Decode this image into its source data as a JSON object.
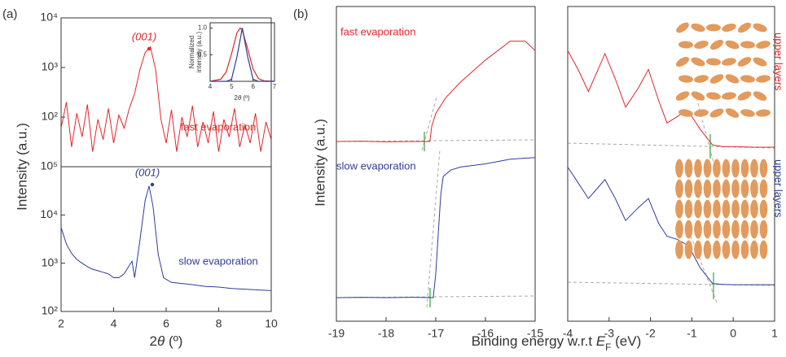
{
  "panel_labels": [
    "(a)",
    "(b)"
  ],
  "chart_data": [
    {
      "type": "line",
      "log_y": true,
      "xlim": [
        2,
        10
      ],
      "ylim": [
        10,
        10000
      ],
      "yticks": [
        {
          "value": 10000,
          "label": "10⁴"
        },
        {
          "value": 1000,
          "label": "10³"
        },
        {
          "value": 100,
          "label": "10²"
        }
      ],
      "annotations": [
        "(001)",
        "fast evaporation"
      ],
      "series": [
        {
          "color": "#e4252a",
          "x": [
            2,
            2.2,
            2.4,
            2.6,
            2.8,
            3,
            3.2,
            3.4,
            3.6,
            3.8,
            4,
            4.2,
            4.4,
            4.6,
            4.8,
            5,
            5.2,
            5.4,
            5.6,
            5.8,
            6,
            6.2,
            6.4,
            6.6,
            6.8,
            7,
            7.2,
            7.4,
            7.6,
            7.8,
            8,
            8.2,
            8.4,
            8.6,
            8.8,
            9,
            9.2,
            9.4,
            9.6,
            9.8,
            10
          ],
          "values": [
            60,
            200,
            25,
            120,
            40,
            180,
            20,
            90,
            35,
            150,
            30,
            110,
            60,
            150,
            300,
            900,
            2000,
            2600,
            900,
            90,
            30,
            140,
            20,
            100,
            40,
            170,
            25,
            80,
            30,
            130,
            20,
            90,
            40,
            150,
            25,
            70,
            30,
            120,
            20,
            80,
            35
          ]
        }
      ]
    },
    {
      "type": "line",
      "log_y": true,
      "xlim": [
        2,
        10
      ],
      "ylim": [
        100,
        100000
      ],
      "yticks": [
        {
          "value": 100000,
          "label": "10⁵"
        },
        {
          "value": 10000,
          "label": "10⁴"
        },
        {
          "value": 1000,
          "label": "10³"
        },
        {
          "value": 100,
          "label": "10²"
        }
      ],
      "xticks": [
        2,
        4,
        6,
        8,
        10
      ],
      "xlabel": [
        "2",
        "θ",
        " (º)"
      ],
      "ylabel": "Intensity (a.u.)",
      "annotations": [
        "(001)",
        "slow evaporation"
      ],
      "series": [
        {
          "color": "#2e3d98",
          "x": [
            2,
            2.2,
            2.4,
            2.6,
            2.8,
            3,
            3.2,
            3.4,
            3.6,
            3.8,
            4,
            4.2,
            4.4,
            4.6,
            4.7,
            4.8,
            5,
            5.2,
            5.35,
            5.5,
            5.7,
            5.9,
            6.2,
            6.6,
            7,
            7.5,
            8,
            8.5,
            9,
            9.5,
            10
          ],
          "values": [
            5500,
            2500,
            1600,
            1200,
            1000,
            850,
            750,
            700,
            650,
            600,
            500,
            500,
            600,
            900,
            1100,
            500,
            3000,
            20000,
            40000,
            15000,
            1500,
            500,
            400,
            380,
            360,
            330,
            320,
            300,
            290,
            280,
            270
          ]
        }
      ]
    },
    {
      "type": "line",
      "xlim": [
        4,
        7
      ],
      "ylim": [
        0,
        1.1
      ],
      "yticks": [
        0.5,
        {
          "value": 1,
          "label": "1.0"
        }
      ],
      "xticks": [
        4,
        5,
        6,
        7
      ],
      "xlabel": [
        "2",
        "θ",
        " (º)"
      ],
      "ylabel": [
        "Normalized",
        "intensity (a.u.)"
      ],
      "series": [
        {
          "color": "#e4252a",
          "x": [
            4,
            4.5,
            4.75,
            5,
            5.25,
            5.4,
            5.5,
            5.75,
            6,
            6.25,
            6.5,
            7
          ],
          "values": [
            0,
            0.04,
            0.18,
            0.52,
            0.91,
            1,
            0.96,
            0.61,
            0.23,
            0.05,
            0.01,
            0
          ]
        },
        {
          "color": "#2e3d98",
          "x": [
            4,
            4.5,
            4.75,
            5,
            5.25,
            5.5,
            5.75,
            6,
            6.25,
            6.5,
            7
          ],
          "values": [
            0,
            0,
            0,
            0.04,
            0.46,
            1,
            0.46,
            0.04,
            0,
            0,
            0
          ]
        }
      ]
    },
    {
      "type": "line",
      "xlim": [
        -19,
        -15
      ],
      "ylim": [
        0,
        1
      ],
      "xticks": [
        -19,
        -18,
        -17,
        -16,
        -15
      ],
      "ylabel": "Intensity (a.u.)",
      "xlabel": [
        "Binding energy w.r.t ",
        "E",
        "F",
        " (eV)"
      ],
      "annotations": [
        "fast evaporation",
        "slow evaporation"
      ],
      "series": [
        {
          "color": "#e4252a",
          "x": [
            -19,
            -18.5,
            -18,
            -17.5,
            -17.12,
            -17.08,
            -17,
            -16.8,
            -16.5,
            -16,
            -15.5,
            -15.2,
            -15
          ],
          "values": [
            0.571,
            0.572,
            0.57,
            0.571,
            0.571,
            0.62,
            0.66,
            0.71,
            0.76,
            0.83,
            0.89,
            0.89,
            0.86
          ]
        },
        {
          "color": "#2e3d98",
          "x": [
            -19,
            -18.5,
            -18,
            -17.5,
            -17.05,
            -17,
            -16.95,
            -16.9,
            -16.85,
            -16.7,
            -16.5,
            -16,
            -15.5,
            -15
          ],
          "values": [
            0.075,
            0.076,
            0.075,
            0.076,
            0.075,
            0.15,
            0.28,
            0.4,
            0.46,
            0.48,
            0.49,
            0.5,
            0.515,
            0.52
          ]
        }
      ]
    },
    {
      "type": "line",
      "xlim": [
        -4,
        1
      ],
      "ylim": [
        0,
        1
      ],
      "xticks": [
        -4,
        -3,
        -2,
        -1,
        0,
        1
      ],
      "annotations": [
        "upper layers",
        "upper layers"
      ],
      "series": [
        {
          "color": "#e4252a",
          "x": [
            -4,
            -3.75,
            -3.5,
            -3.3,
            -3.1,
            -2.85,
            -2.6,
            -2.3,
            -2.05,
            -1.8,
            -1.6,
            -1.35,
            -1.15,
            -1,
            -0.8,
            -0.5,
            -0.25,
            0,
            0.5,
            1
          ],
          "values": [
            0.86,
            0.8,
            0.73,
            0.79,
            0.85,
            0.77,
            0.68,
            0.74,
            0.8,
            0.7,
            0.63,
            0.65,
            0.67,
            0.65,
            0.61,
            0.56,
            0.555,
            0.555,
            0.553,
            0.553
          ]
        },
        {
          "color": "#2e3d98",
          "x": [
            -4,
            -3.75,
            -3.5,
            -3.3,
            -3.1,
            -2.85,
            -2.6,
            -2.3,
            -2.05,
            -1.8,
            -1.6,
            -1.35,
            -1.15,
            -1,
            -0.8,
            -0.5,
            -0.25,
            0,
            0.5,
            1
          ],
          "values": [
            0.49,
            0.44,
            0.39,
            0.42,
            0.45,
            0.39,
            0.32,
            0.36,
            0.39,
            0.31,
            0.27,
            0.26,
            0.245,
            0.22,
            0.17,
            0.12,
            0.117,
            0.116,
            0.116,
            0.116
          ]
        }
      ]
    }
  ]
}
